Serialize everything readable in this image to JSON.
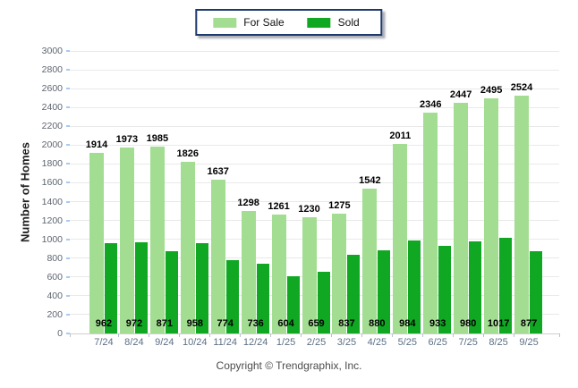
{
  "legend": {
    "items": [
      {
        "label": "For Sale",
        "color": "#a3dd92"
      },
      {
        "label": "Sold",
        "color": "#10a823"
      }
    ]
  },
  "footer": {
    "copyright": "Copyright © Trendgraphix, Inc."
  },
  "colors": {
    "for_sale_bar": "#a3dd92",
    "sold_bar": "#10a823",
    "legend_border": "#1e3a6d",
    "gridline": "#e9e9e9",
    "axis_baseline": "#cfcfcf",
    "y_tick_text": "#5e6570",
    "x_tick_text": "#5c7085",
    "value_label_text": "#000000",
    "copyright_text": "#4c4c4c",
    "y_axis_tick_mark": "#a5cbf2"
  },
  "chart_data": {
    "type": "bar",
    "title": "",
    "xlabel": "",
    "ylabel": "Number of Homes",
    "ylim": [
      0,
      3000
    ],
    "ytick_step": 200,
    "grid": true,
    "legend_position": "top-center",
    "categories": [
      "7/24",
      "8/24",
      "9/24",
      "10/24",
      "11/24",
      "12/24",
      "1/25",
      "2/25",
      "3/25",
      "4/25",
      "5/25",
      "6/25",
      "7/25",
      "8/25",
      "9/25"
    ],
    "series": [
      {
        "name": "For Sale",
        "color": "#a3dd92",
        "values": [
          1914,
          1973,
          1985,
          1826,
          1637,
          1298,
          1261,
          1230,
          1275,
          1542,
          2011,
          2346,
          2447,
          2495,
          2524
        ]
      },
      {
        "name": "Sold",
        "color": "#10a823",
        "values": [
          962,
          972,
          871,
          958,
          774,
          736,
          604,
          659,
          837,
          880,
          984,
          933,
          980,
          1017,
          877
        ]
      }
    ]
  }
}
